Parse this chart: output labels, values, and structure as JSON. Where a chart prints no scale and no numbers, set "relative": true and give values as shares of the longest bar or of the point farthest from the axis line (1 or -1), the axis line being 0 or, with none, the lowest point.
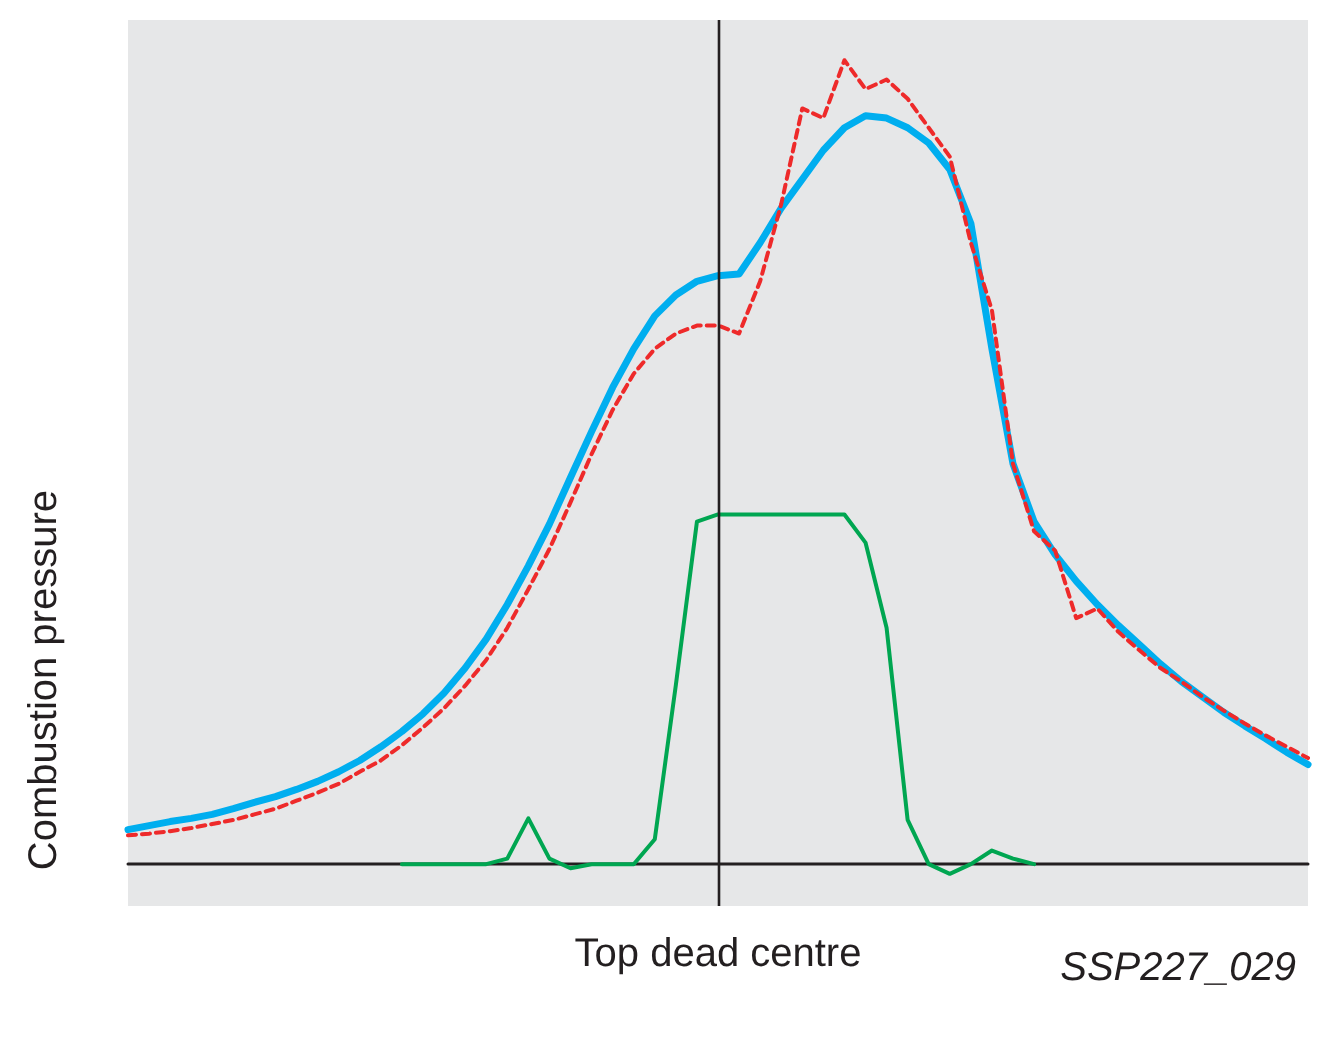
{
  "chart_data": {
    "type": "line",
    "relative": true,
    "ylabel": "Combustion pressure",
    "grid": false,
    "marker": "none",
    "categories": [
      null,
      null,
      null,
      null,
      null,
      null,
      null,
      null,
      null,
      null,
      null,
      null,
      null,
      null,
      null,
      null,
      null,
      null,
      null,
      null,
      null,
      null,
      null,
      null,
      null,
      null,
      null,
      null,
      null,
      null,
      null,
      null,
      null,
      null,
      null,
      null,
      null,
      null,
      null,
      null,
      null,
      null,
      null,
      null,
      null,
      null,
      null,
      null,
      null,
      null,
      null,
      null,
      null,
      null,
      null,
      null,
      null
    ],
    "series": [
      {
        "color": "#00aeef",
        "line_style": "solid",
        "values": [
          0.043,
          0.048,
          0.053,
          0.057,
          0.062,
          0.069,
          0.077,
          0.084,
          0.093,
          0.103,
          0.115,
          0.129,
          0.146,
          0.165,
          0.187,
          0.213,
          0.244,
          0.28,
          0.323,
          0.371,
          0.423,
          0.481,
          0.538,
          0.593,
          0.641,
          0.682,
          0.708,
          0.725,
          0.732,
          0.734,
          0.773,
          0.816,
          0.852,
          0.888,
          0.916,
          0.931,
          0.928,
          0.916,
          0.897,
          0.864,
          0.797,
          0.641,
          0.498,
          0.426,
          0.385,
          0.352,
          0.323,
          0.297,
          0.273,
          0.249,
          0.227,
          0.208,
          0.189,
          0.172,
          0.156,
          0.139,
          0.124
        ]
      },
      {
        "color": "#ee2a2a",
        "line_style": "dashed",
        "values": [
          0.036,
          0.038,
          0.041,
          0.045,
          0.05,
          0.055,
          0.062,
          0.069,
          0.079,
          0.089,
          0.1,
          0.115,
          0.129,
          0.148,
          0.17,
          0.194,
          0.222,
          0.254,
          0.294,
          0.342,
          0.392,
          0.45,
          0.51,
          0.565,
          0.61,
          0.641,
          0.66,
          0.67,
          0.67,
          0.66,
          0.725,
          0.821,
          0.94,
          0.928,
          1.0,
          0.964,
          0.976,
          0.952,
          0.916,
          0.88,
          0.773,
          0.689,
          0.498,
          0.414,
          0.39,
          0.306,
          0.318,
          0.289,
          0.266,
          0.244,
          0.227,
          0.208,
          0.191,
          0.175,
          0.16,
          0.146,
          0.132
        ]
      },
      {
        "color": "#00a651",
        "line_style": "solid",
        "values": [
          null,
          null,
          null,
          null,
          null,
          null,
          null,
          null,
          null,
          null,
          null,
          null,
          null,
          0,
          0,
          0,
          0,
          0,
          0.007,
          0.057,
          0.007,
          -0.005,
          0,
          0,
          0,
          0.031,
          0.223,
          0.426,
          0.435,
          0.435,
          0.435,
          0.435,
          0.435,
          0.435,
          0.435,
          0.4,
          0.294,
          0.055,
          0,
          -0.012,
          0,
          0.017,
          0.007,
          0,
          null,
          null,
          null,
          null,
          null,
          null,
          null,
          null,
          null,
          null,
          null,
          null,
          null
        ]
      }
    ],
    "ref_lines": [
      {
        "axis": "x",
        "label": "Top dead centre",
        "color": "#231f20"
      }
    ],
    "annotations": [
      "SSP227_029"
    ]
  }
}
